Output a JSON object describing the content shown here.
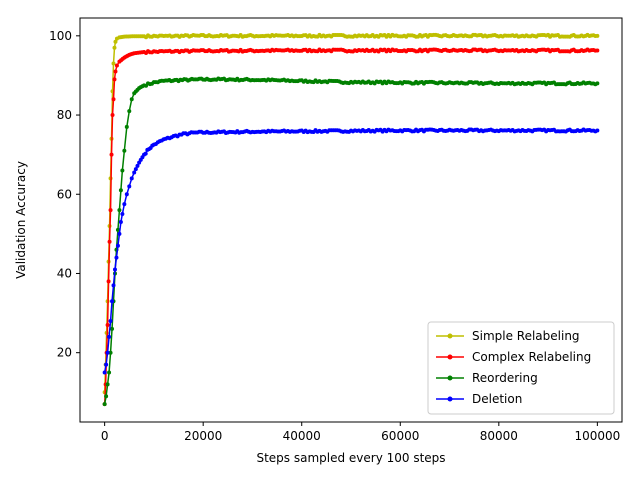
{
  "chart_data": {
    "type": "line",
    "xlabel": "Steps sampled every 100 steps",
    "ylabel": "Validation Accuracy",
    "xlim": [
      -5000,
      105000
    ],
    "ylim": [
      2.5,
      104.5
    ],
    "xticks": [
      {
        "value": 0,
        "label": "0"
      },
      {
        "value": 20000,
        "label": "20000"
      },
      {
        "value": 40000,
        "label": "40000"
      },
      {
        "value": 60000,
        "label": "60000"
      },
      {
        "value": 80000,
        "label": "80000"
      },
      {
        "value": 100000,
        "label": "100000"
      }
    ],
    "yticks": [
      {
        "value": 20,
        "label": "20"
      },
      {
        "value": 40,
        "label": "40"
      },
      {
        "value": 60,
        "label": "60"
      },
      {
        "value": 80,
        "label": "80"
      },
      {
        "value": 100,
        "label": "100"
      }
    ],
    "grid": false,
    "legend_position": "lower-right",
    "marker": "circle",
    "series": [
      {
        "name": "Simple Relabeling",
        "color": "#bfbf00",
        "points": [
          [
            0,
            10
          ],
          [
            200,
            17
          ],
          [
            400,
            25
          ],
          [
            600,
            33
          ],
          [
            800,
            43
          ],
          [
            1000,
            52
          ],
          [
            1200,
            64
          ],
          [
            1400,
            74
          ],
          [
            1600,
            86
          ],
          [
            1800,
            93
          ],
          [
            2000,
            97
          ],
          [
            2200,
            98.5
          ],
          [
            2500,
            99.3
          ],
          [
            3000,
            99.6
          ],
          [
            4000,
            99.8
          ],
          [
            6000,
            99.9
          ],
          [
            10000,
            99.9
          ],
          [
            20000,
            100
          ],
          [
            40000,
            100
          ],
          [
            60000,
            100
          ],
          [
            80000,
            100
          ],
          [
            100000,
            100
          ]
        ]
      },
      {
        "name": "Complex Relabeling",
        "color": "#ff0000",
        "points": [
          [
            0,
            7
          ],
          [
            200,
            12
          ],
          [
            400,
            20
          ],
          [
            600,
            27
          ],
          [
            800,
            38
          ],
          [
            1000,
            48
          ],
          [
            1200,
            56
          ],
          [
            1400,
            70
          ],
          [
            1600,
            80
          ],
          [
            1800,
            84
          ],
          [
            2000,
            89
          ],
          [
            2200,
            91
          ],
          [
            2500,
            92.5
          ],
          [
            3000,
            93.5
          ],
          [
            4000,
            94.5
          ],
          [
            5000,
            95.2
          ],
          [
            6000,
            95.6
          ],
          [
            8000,
            95.9
          ],
          [
            10000,
            96
          ],
          [
            20000,
            96.2
          ],
          [
            40000,
            96.3
          ],
          [
            60000,
            96.3
          ],
          [
            80000,
            96.3
          ],
          [
            100000,
            96.3
          ]
        ]
      },
      {
        "name": "Reordering",
        "color": "#008000",
        "points": [
          [
            0,
            7
          ],
          [
            300,
            9
          ],
          [
            600,
            12
          ],
          [
            900,
            15
          ],
          [
            1200,
            20
          ],
          [
            1500,
            26
          ],
          [
            1800,
            33
          ],
          [
            2100,
            40
          ],
          [
            2400,
            46
          ],
          [
            2700,
            51
          ],
          [
            3000,
            56
          ],
          [
            3300,
            61
          ],
          [
            3600,
            66
          ],
          [
            4000,
            71
          ],
          [
            4500,
            77
          ],
          [
            5000,
            81
          ],
          [
            5500,
            84
          ],
          [
            6000,
            85.5
          ],
          [
            7000,
            86.8
          ],
          [
            8000,
            87.5
          ],
          [
            10000,
            88.2
          ],
          [
            12000,
            88.6
          ],
          [
            15000,
            88.8
          ],
          [
            20000,
            89
          ],
          [
            25000,
            89
          ],
          [
            30000,
            88.9
          ],
          [
            40000,
            88.6
          ],
          [
            50000,
            88.3
          ],
          [
            60000,
            88.2
          ],
          [
            70000,
            88.1
          ],
          [
            80000,
            88
          ],
          [
            90000,
            88
          ],
          [
            100000,
            88
          ]
        ]
      },
      {
        "name": "Deletion",
        "color": "#0000ff",
        "points": [
          [
            0,
            15
          ],
          [
            300,
            17
          ],
          [
            600,
            20
          ],
          [
            900,
            24
          ],
          [
            1200,
            28
          ],
          [
            1500,
            33
          ],
          [
            1800,
            37
          ],
          [
            2100,
            41
          ],
          [
            2400,
            44
          ],
          [
            2700,
            47
          ],
          [
            3000,
            50
          ],
          [
            3300,
            53
          ],
          [
            3600,
            55
          ],
          [
            4000,
            57.5
          ],
          [
            4500,
            60
          ],
          [
            5000,
            62
          ],
          [
            5500,
            64
          ],
          [
            6000,
            65.5
          ],
          [
            7000,
            68
          ],
          [
            8000,
            70
          ],
          [
            9000,
            71.5
          ],
          [
            10000,
            72.5
          ],
          [
            12000,
            73.8
          ],
          [
            14000,
            74.6
          ],
          [
            16000,
            75.2
          ],
          [
            18000,
            75.5
          ],
          [
            20000,
            75.6
          ],
          [
            25000,
            75.7
          ],
          [
            30000,
            75.8
          ],
          [
            40000,
            75.9
          ],
          [
            50000,
            76
          ],
          [
            60000,
            76.1
          ],
          [
            70000,
            76.1
          ],
          [
            80000,
            76.1
          ],
          [
            90000,
            76.1
          ],
          [
            100000,
            76.1
          ]
        ]
      }
    ]
  }
}
